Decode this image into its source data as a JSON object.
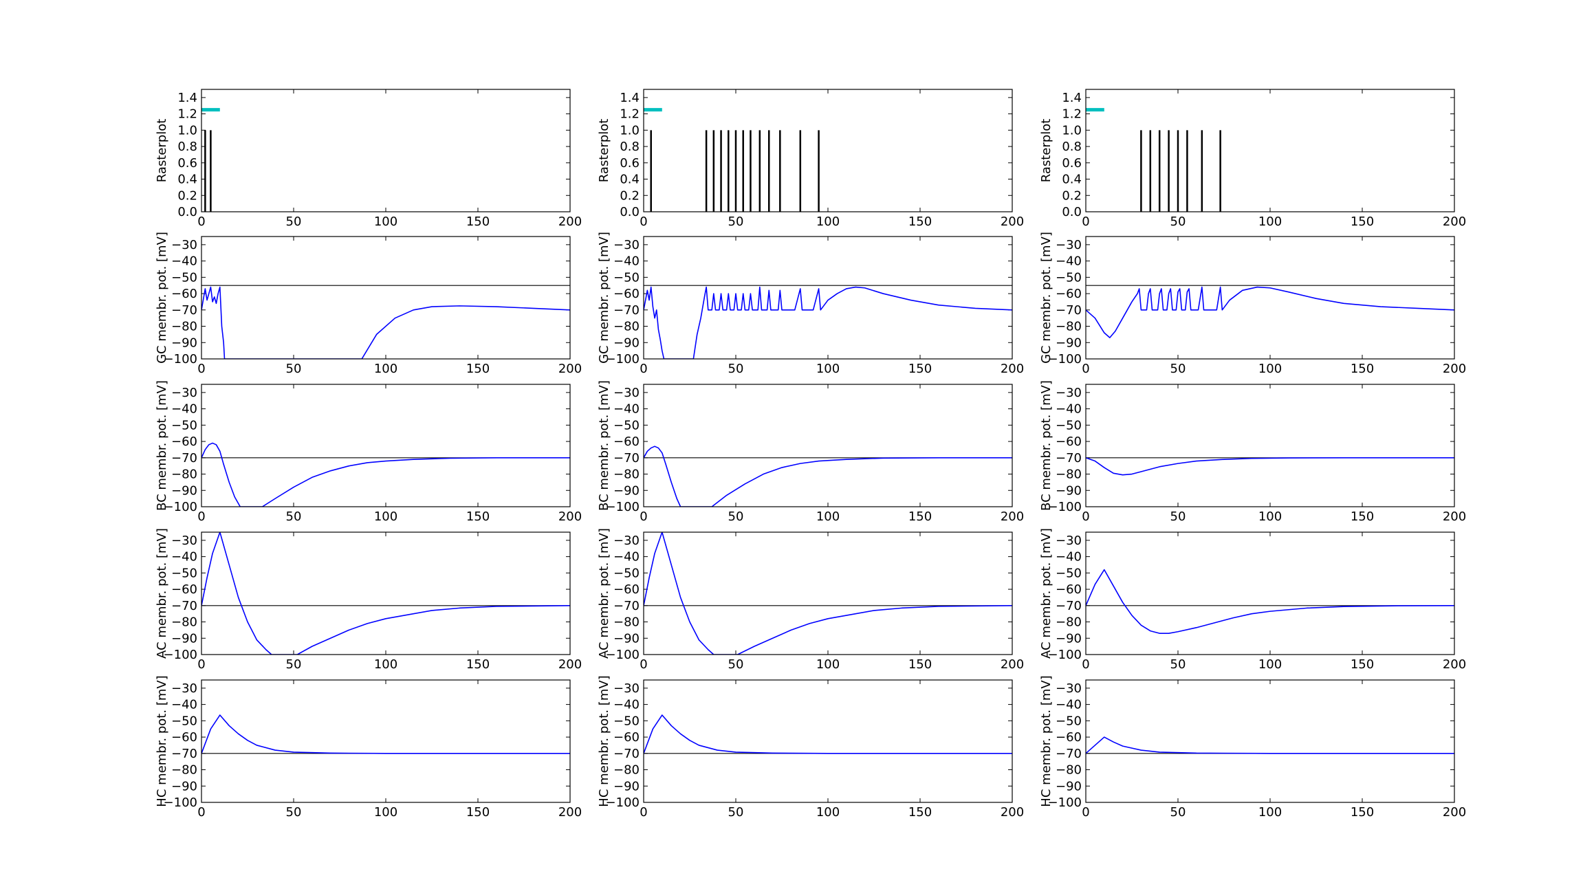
{
  "chart_data": {
    "type": "line",
    "layout": "5 rows x 3 columns grid of subplots, one column per simulation",
    "x_ticks": [
      0,
      50,
      100,
      150,
      200
    ],
    "xlim": [
      0,
      200
    ],
    "raster_ylim": [
      0,
      1.5
    ],
    "raster_yticks": [
      "0.0",
      "0.2",
      "0.4",
      "0.6",
      "0.8",
      "1.0",
      "1.2",
      "1.4"
    ],
    "potential_ylim": [
      -100,
      -25
    ],
    "potential_yticks": [
      "−30",
      "−40",
      "−50",
      "−60",
      "−70",
      "−80",
      "−90",
      "−100"
    ],
    "threshold_lines": {
      "GC": -55,
      "BC": -70,
      "AC": -70,
      "HC": -70
    },
    "stimulus_bar": {
      "x_start": 0,
      "x_end": 10,
      "y": 1.25,
      "color": "#00bfbf"
    },
    "line_color": "#0000ff",
    "rows": [
      {
        "key": "raster",
        "ylabel": "Rasterplot"
      },
      {
        "key": "GC",
        "ylabel": "GC membr. pot. [mV]"
      },
      {
        "key": "BC",
        "ylabel": "BC membr. pot. [mV]"
      },
      {
        "key": "AC",
        "ylabel": "AC membr. pot. [mV]"
      },
      {
        "key": "HC",
        "ylabel": "HC membr. pot. [mV]"
      }
    ],
    "columns": [
      {
        "spikes": [
          2,
          5
        ],
        "GC": [
          [
            0,
            -70
          ],
          [
            2,
            -57
          ],
          [
            3,
            -64
          ],
          [
            4,
            -60
          ],
          [
            5,
            -56
          ],
          [
            6,
            -65
          ],
          [
            7,
            -62
          ],
          [
            8,
            -66
          ],
          [
            9,
            -60
          ],
          [
            10,
            -56
          ],
          [
            11,
            -80
          ],
          [
            12,
            -90
          ],
          [
            12.5,
            -100
          ],
          [
            87,
            -100
          ],
          [
            95,
            -85
          ],
          [
            105,
            -75
          ],
          [
            115,
            -70
          ],
          [
            125,
            -68
          ],
          [
            140,
            -67.5
          ],
          [
            160,
            -68
          ],
          [
            180,
            -69
          ],
          [
            200,
            -70
          ]
        ],
        "BC": [
          [
            0,
            -70
          ],
          [
            2,
            -65
          ],
          [
            4,
            -62
          ],
          [
            6,
            -61
          ],
          [
            8,
            -62
          ],
          [
            10,
            -66
          ],
          [
            12,
            -74
          ],
          [
            15,
            -85
          ],
          [
            18,
            -94
          ],
          [
            21,
            -100
          ],
          [
            33,
            -100
          ],
          [
            40,
            -95
          ],
          [
            50,
            -88
          ],
          [
            60,
            -82
          ],
          [
            70,
            -78
          ],
          [
            80,
            -75
          ],
          [
            90,
            -73
          ],
          [
            100,
            -72
          ],
          [
            115,
            -71
          ],
          [
            135,
            -70.3
          ],
          [
            160,
            -70
          ],
          [
            200,
            -70
          ]
        ],
        "AC": [
          [
            0,
            -70
          ],
          [
            3,
            -53
          ],
          [
            6,
            -38
          ],
          [
            10,
            -25
          ],
          [
            15,
            -45
          ],
          [
            20,
            -65
          ],
          [
            25,
            -80
          ],
          [
            30,
            -91
          ],
          [
            35,
            -97
          ],
          [
            38,
            -100
          ],
          [
            52,
            -100
          ],
          [
            60,
            -95
          ],
          [
            70,
            -90
          ],
          [
            80,
            -85
          ],
          [
            90,
            -81
          ],
          [
            100,
            -78
          ],
          [
            110,
            -76
          ],
          [
            125,
            -73
          ],
          [
            140,
            -71.5
          ],
          [
            160,
            -70.5
          ],
          [
            200,
            -70
          ]
        ],
        "HC": [
          [
            0,
            -70
          ],
          [
            5,
            -55
          ],
          [
            10,
            -46.5
          ],
          [
            15,
            -53
          ],
          [
            20,
            -58
          ],
          [
            25,
            -62
          ],
          [
            30,
            -65
          ],
          [
            40,
            -68
          ],
          [
            50,
            -69.2
          ],
          [
            70,
            -69.8
          ],
          [
            100,
            -70
          ],
          [
            200,
            -70
          ]
        ]
      },
      {
        "spikes": [
          4,
          34,
          38,
          42,
          46,
          50,
          54,
          58,
          63,
          68,
          74,
          85,
          95
        ],
        "GC": [
          [
            0,
            -70
          ],
          [
            2,
            -58
          ],
          [
            3,
            -64
          ],
          [
            4,
            -56
          ],
          [
            5,
            -68
          ],
          [
            6,
            -75
          ],
          [
            7,
            -70
          ],
          [
            8,
            -82
          ],
          [
            9,
            -88
          ],
          [
            10,
            -95
          ],
          [
            11,
            -100
          ],
          [
            27,
            -100
          ],
          [
            29,
            -85
          ],
          [
            31,
            -75
          ],
          [
            33,
            -62
          ],
          [
            34,
            -56
          ],
          [
            35,
            -70
          ],
          [
            37,
            -70
          ],
          [
            38,
            -60
          ],
          [
            39,
            -70
          ],
          [
            41,
            -70
          ],
          [
            42,
            -60
          ],
          [
            43,
            -70
          ],
          [
            45,
            -70
          ],
          [
            46,
            -60
          ],
          [
            47,
            -70
          ],
          [
            49,
            -70
          ],
          [
            50,
            -60
          ],
          [
            51,
            -70
          ],
          [
            53,
            -70
          ],
          [
            54,
            -60
          ],
          [
            55,
            -70
          ],
          [
            57,
            -70
          ],
          [
            58,
            -60
          ],
          [
            59,
            -70
          ],
          [
            62,
            -70
          ],
          [
            63,
            -56
          ],
          [
            64,
            -70
          ],
          [
            67,
            -70
          ],
          [
            68,
            -58
          ],
          [
            69,
            -70
          ],
          [
            73,
            -70
          ],
          [
            74,
            -58
          ],
          [
            75,
            -70
          ],
          [
            82,
            -70
          ],
          [
            85,
            -57
          ],
          [
            86,
            -70
          ],
          [
            92,
            -70
          ],
          [
            95,
            -57
          ],
          [
            96,
            -70
          ],
          [
            100,
            -64
          ],
          [
            105,
            -60
          ],
          [
            110,
            -57
          ],
          [
            115,
            -56
          ],
          [
            120,
            -56.5
          ],
          [
            130,
            -60
          ],
          [
            145,
            -64
          ],
          [
            160,
            -67
          ],
          [
            180,
            -69
          ],
          [
            200,
            -70
          ]
        ],
        "BC": [
          [
            0,
            -70
          ],
          [
            2,
            -66
          ],
          [
            4,
            -64
          ],
          [
            6,
            -63
          ],
          [
            8,
            -64
          ],
          [
            10,
            -67
          ],
          [
            12,
            -74
          ],
          [
            15,
            -85
          ],
          [
            18,
            -95
          ],
          [
            20,
            -100
          ],
          [
            37,
            -100
          ],
          [
            45,
            -93
          ],
          [
            55,
            -86
          ],
          [
            65,
            -80
          ],
          [
            75,
            -76
          ],
          [
            85,
            -73.5
          ],
          [
            95,
            -72
          ],
          [
            110,
            -71
          ],
          [
            130,
            -70.2
          ],
          [
            160,
            -70
          ],
          [
            200,
            -70
          ]
        ],
        "AC": [
          [
            0,
            -70
          ],
          [
            3,
            -53
          ],
          [
            6,
            -38
          ],
          [
            10,
            -25
          ],
          [
            15,
            -45
          ],
          [
            20,
            -65
          ],
          [
            25,
            -80
          ],
          [
            30,
            -91
          ],
          [
            35,
            -97
          ],
          [
            38,
            -100
          ],
          [
            51,
            -100
          ],
          [
            60,
            -95
          ],
          [
            70,
            -90
          ],
          [
            80,
            -85
          ],
          [
            90,
            -81
          ],
          [
            100,
            -78
          ],
          [
            110,
            -76
          ],
          [
            125,
            -73
          ],
          [
            140,
            -71.5
          ],
          [
            160,
            -70.5
          ],
          [
            200,
            -70
          ]
        ],
        "HC": [
          [
            0,
            -70
          ],
          [
            5,
            -55
          ],
          [
            10,
            -46.5
          ],
          [
            15,
            -53
          ],
          [
            20,
            -58
          ],
          [
            25,
            -62
          ],
          [
            30,
            -65
          ],
          [
            40,
            -68
          ],
          [
            50,
            -69.2
          ],
          [
            70,
            -69.8
          ],
          [
            100,
            -70
          ],
          [
            200,
            -70
          ]
        ]
      },
      {
        "spikes": [
          30,
          35,
          40,
          45,
          50,
          55,
          63,
          73
        ],
        "GC": [
          [
            0,
            -70
          ],
          [
            5,
            -75
          ],
          [
            10,
            -84
          ],
          [
            13,
            -87
          ],
          [
            16,
            -83
          ],
          [
            20,
            -75
          ],
          [
            25,
            -65
          ],
          [
            28,
            -60
          ],
          [
            29,
            -57
          ],
          [
            30,
            -70
          ],
          [
            33,
            -70
          ],
          [
            34,
            -60
          ],
          [
            35,
            -57
          ],
          [
            36,
            -70
          ],
          [
            39,
            -70
          ],
          [
            40,
            -60
          ],
          [
            41,
            -57
          ],
          [
            42,
            -70
          ],
          [
            44,
            -70
          ],
          [
            45,
            -60
          ],
          [
            46,
            -57
          ],
          [
            47,
            -70
          ],
          [
            49,
            -70
          ],
          [
            50,
            -59
          ],
          [
            51,
            -57
          ],
          [
            52,
            -70
          ],
          [
            54,
            -70
          ],
          [
            55,
            -59
          ],
          [
            56,
            -57
          ],
          [
            57,
            -70
          ],
          [
            61,
            -70
          ],
          [
            63,
            -56
          ],
          [
            64,
            -70
          ],
          [
            71,
            -70
          ],
          [
            73,
            -56
          ],
          [
            74,
            -70
          ],
          [
            78,
            -64
          ],
          [
            85,
            -58
          ],
          [
            93,
            -56
          ],
          [
            100,
            -56.5
          ],
          [
            110,
            -59
          ],
          [
            125,
            -63
          ],
          [
            140,
            -66
          ],
          [
            160,
            -68
          ],
          [
            180,
            -69
          ],
          [
            200,
            -70
          ]
        ],
        "BC": [
          [
            0,
            -70
          ],
          [
            5,
            -72
          ],
          [
            10,
            -76
          ],
          [
            15,
            -79.5
          ],
          [
            20,
            -80.5
          ],
          [
            25,
            -80
          ],
          [
            30,
            -78.5
          ],
          [
            40,
            -75.5
          ],
          [
            50,
            -73.5
          ],
          [
            60,
            -72
          ],
          [
            75,
            -71
          ],
          [
            90,
            -70.4
          ],
          [
            110,
            -70.1
          ],
          [
            140,
            -70
          ],
          [
            200,
            -70
          ]
        ],
        "AC": [
          [
            0,
            -70
          ],
          [
            5,
            -57
          ],
          [
            10,
            -48
          ],
          [
            15,
            -58
          ],
          [
            20,
            -68
          ],
          [
            25,
            -76
          ],
          [
            30,
            -82
          ],
          [
            35,
            -85.5
          ],
          [
            40,
            -87
          ],
          [
            45,
            -87
          ],
          [
            50,
            -86
          ],
          [
            60,
            -83.5
          ],
          [
            70,
            -80.5
          ],
          [
            80,
            -77.5
          ],
          [
            90,
            -75
          ],
          [
            100,
            -73.5
          ],
          [
            120,
            -71.5
          ],
          [
            140,
            -70.6
          ],
          [
            170,
            -70.1
          ],
          [
            200,
            -70
          ]
        ],
        "HC": [
          [
            0,
            -70
          ],
          [
            5,
            -65
          ],
          [
            10,
            -60
          ],
          [
            15,
            -63
          ],
          [
            20,
            -65.5
          ],
          [
            30,
            -68
          ],
          [
            40,
            -69.2
          ],
          [
            60,
            -69.8
          ],
          [
            100,
            -70
          ],
          [
            200,
            -70
          ]
        ]
      }
    ]
  }
}
